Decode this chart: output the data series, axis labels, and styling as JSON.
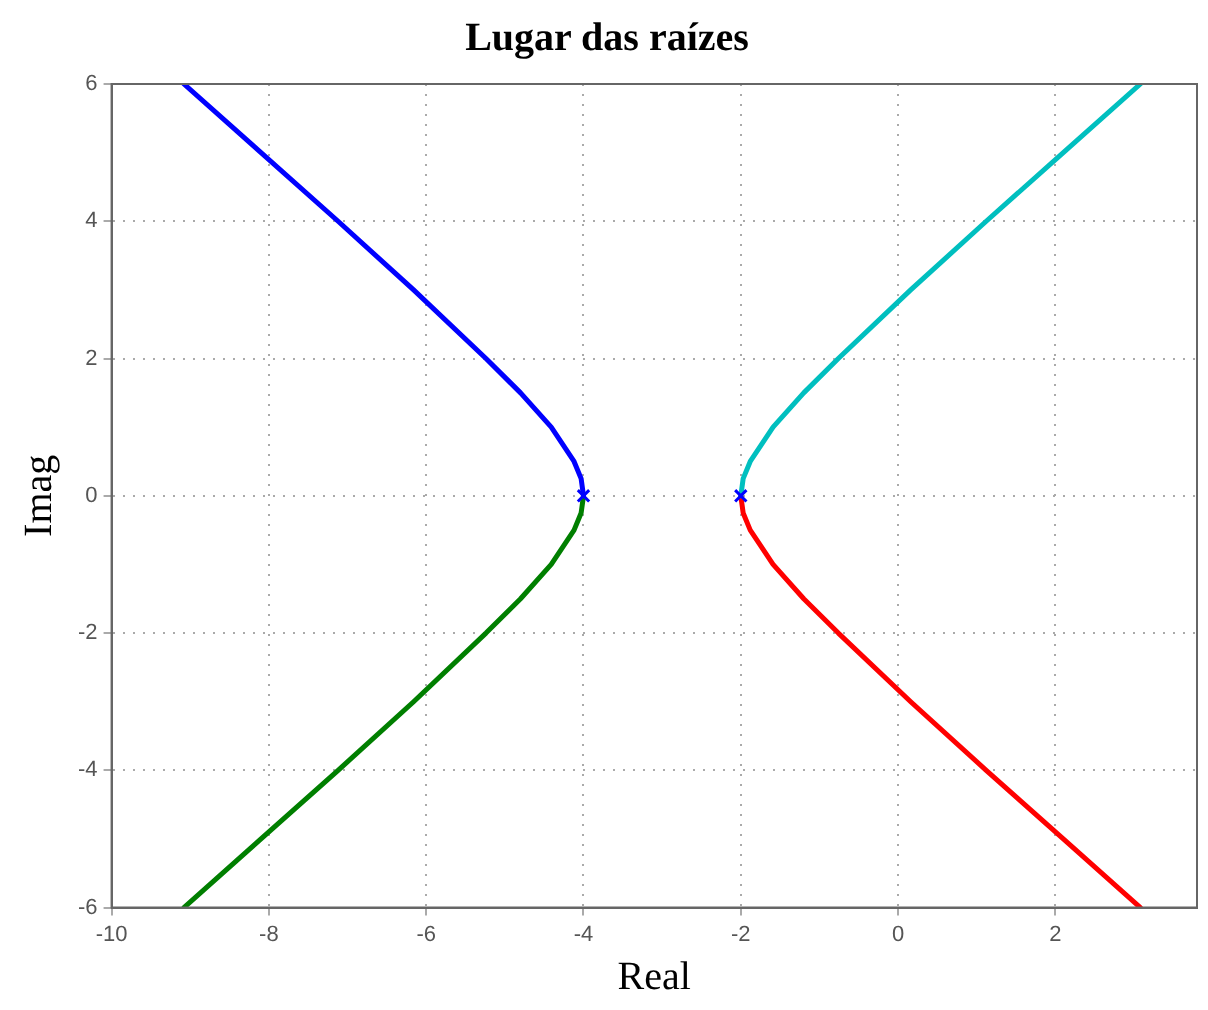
{
  "chart_data": {
    "type": "line",
    "title": "Lugar das raízes",
    "xlabel": "Real",
    "ylabel": "Imag",
    "xlim": [
      -10,
      3.8
    ],
    "xticks": [
      -10,
      -8,
      -6,
      -4,
      -2,
      0,
      2
    ],
    "ylim": [
      -6,
      6
    ],
    "yticks": [
      -6,
      -4,
      -2,
      0,
      2,
      4,
      6
    ],
    "grid": true,
    "legend": false,
    "line_style": "solid",
    "series": [
      {
        "color": "#0000ff",
        "marker": "none",
        "x": [
          -4,
          -4.03,
          -4.12,
          -4.41,
          -4.8,
          -5.24,
          -6.16,
          -7.12,
          -8.1,
          -9.08
        ],
        "values": [
          0,
          0.25,
          0.5,
          1,
          1.5,
          2,
          3,
          4,
          5,
          6
        ]
      },
      {
        "color": "#007f00",
        "marker": "none",
        "x": [
          -4,
          -4.03,
          -4.12,
          -4.41,
          -4.8,
          -5.24,
          -6.16,
          -7.12,
          -8.1,
          -9.08
        ],
        "values": [
          0,
          -0.25,
          -0.5,
          -1,
          -1.5,
          -2,
          -3,
          -4,
          -5,
          -6
        ]
      },
      {
        "color": "#00bfbf",
        "marker": "none",
        "x": [
          -2,
          -1.97,
          -1.88,
          -1.59,
          -1.2,
          -0.76,
          0.16,
          1.12,
          2.1,
          3.08
        ],
        "values": [
          0,
          0.25,
          0.5,
          1,
          1.5,
          2,
          3,
          4,
          5,
          6
        ]
      },
      {
        "color": "#ff0000",
        "marker": "none",
        "x": [
          -2,
          -1.97,
          -1.88,
          -1.59,
          -1.2,
          -0.76,
          0.16,
          1.12,
          2.1,
          3.08
        ],
        "values": [
          0,
          -0.25,
          -0.5,
          -1,
          -1.5,
          -2,
          -3,
          -4,
          -5,
          -6
        ]
      },
      {
        "type": "scatter",
        "color": "#0000ff",
        "marker": "cross",
        "x": [
          -4,
          -2
        ],
        "values": [
          0,
          0
        ]
      }
    ]
  }
}
